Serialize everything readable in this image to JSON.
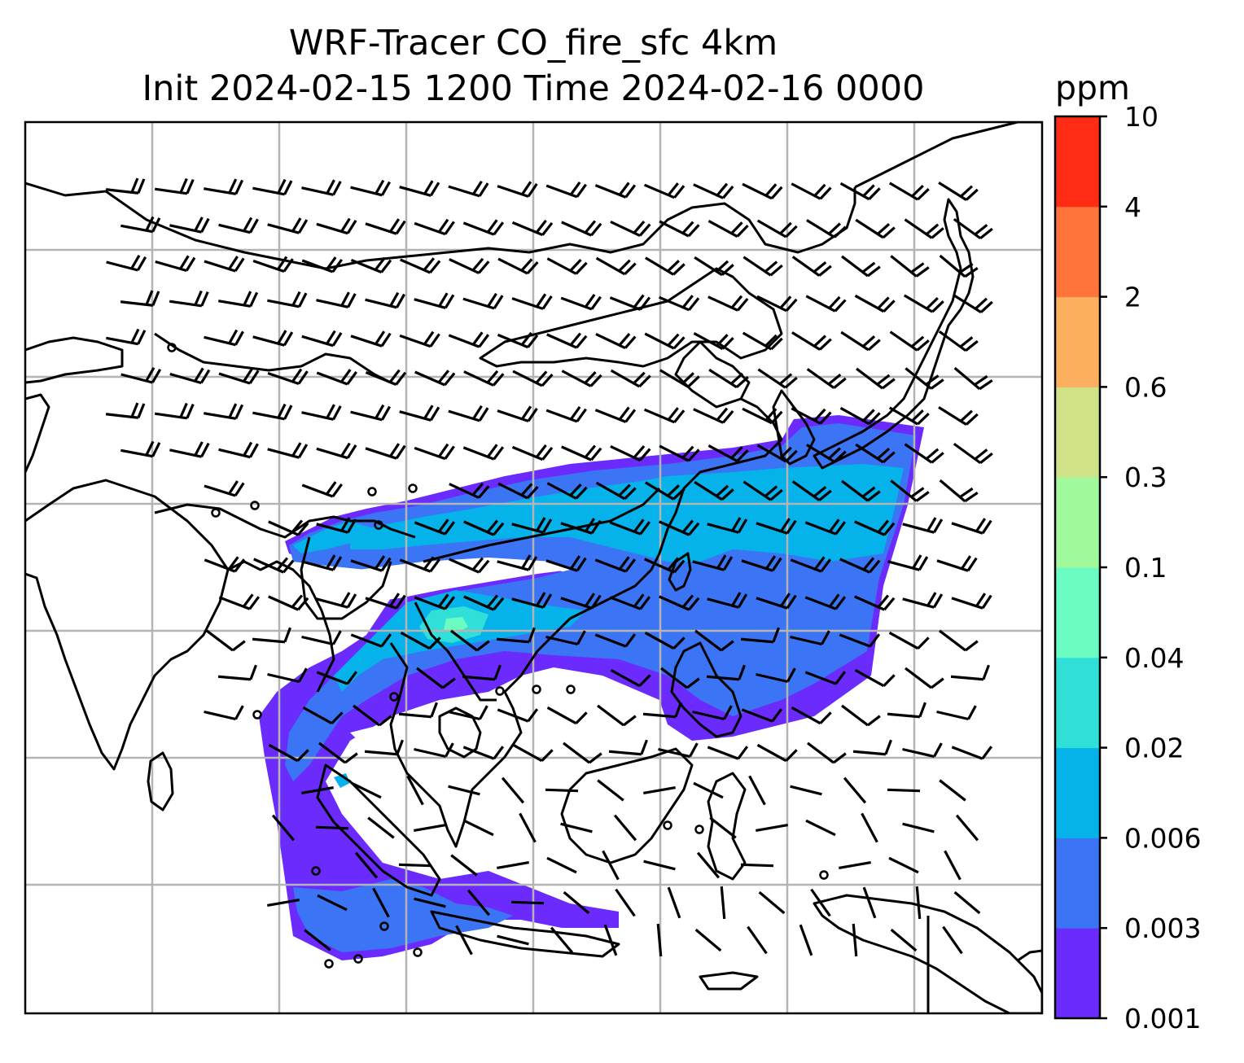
{
  "header": {
    "title_line_1": "WRF-Tracer CO_fire_sfc 4km",
    "title_line_2": "Init 2024-02-15 1200 Time 2024-02-16 0000"
  },
  "colorbar": {
    "unit": "ppm",
    "levels": [
      "0.001",
      "0.003",
      "0.006",
      "0.02",
      "0.04",
      "0.1",
      "0.3",
      "0.6",
      "2",
      "4",
      "10"
    ],
    "colors": [
      "#6a2bfc",
      "#3b74f4",
      "#05b2ea",
      "#2fdfd8",
      "#6afcc0",
      "#a0fa9c",
      "#d0e288",
      "#fdaf60",
      "#ff743b",
      "#ff2b15"
    ]
  },
  "map": {
    "variable": "CO_fire_sfc",
    "gridlines": true,
    "wind_barbs": true,
    "coastlines": true
  },
  "colors": {
    "gridline": "#b4b4b4",
    "coastline": "#000000",
    "band_low": "#6a2bfc",
    "band_mid": "#3b74f4",
    "band_high": "#05b2ea",
    "band_peak": "#2fdfd8"
  }
}
